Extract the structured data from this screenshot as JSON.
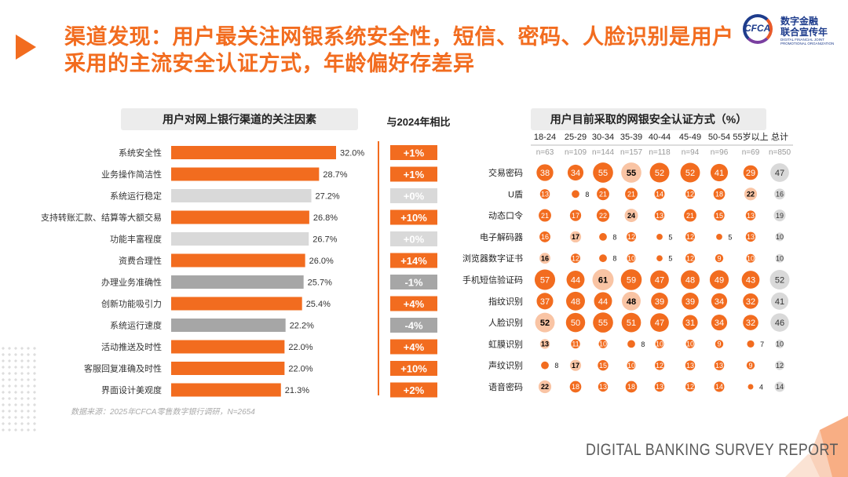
{
  "title": "渠道发现：用户最关注网银系统安全性，短信、密码、人脸识别是用户采用的主流安全认证方式，年龄偏好存差异",
  "logo": {
    "abbr": "CFCA",
    "line1": "数字金融",
    "line2": "联合宣传年",
    "line3": "DIGITAL FINANCIAL JOINT PROMOTIONAL ORGANIZATION"
  },
  "left_panel": {
    "title": "用户对网上银行渠道的关注因素",
    "compare_title": "与2024年相比"
  },
  "right_panel": {
    "title": "用户目前采取的网银安全认证方式（%）"
  },
  "source": "数据来源：2025年CFCA零售数字银行调研，N=2654",
  "footer": "DIGITAL BANKING SURVEY REPORT",
  "colors": {
    "accent": "#f26c1f",
    "light_gray": "#d9d9d9",
    "mid_gray": "#a6a6a6",
    "bubble_light": "#f9c4a4",
    "total_gray": "#d9d9d9"
  },
  "chart_data": [
    {
      "type": "bar",
      "title": "用户对网上银行渠道的关注因素",
      "orientation": "horizontal",
      "categories": [
        "系统安全性",
        "业务操作简洁性",
        "系统运行稳定",
        "支持转账汇款、结算等大额交易",
        "功能丰富程度",
        "资费合理性",
        "办理业务准确性",
        "创新功能吸引力",
        "系统运行速度",
        "活动推送及时性",
        "客服回复准确及时性",
        "界面设计美观度"
      ],
      "values": [
        32.0,
        28.7,
        27.2,
        26.8,
        26.7,
        26.0,
        25.7,
        25.4,
        22.2,
        22.0,
        22.0,
        21.3
      ],
      "labels": [
        "32.0%",
        "28.7%",
        "27.2%",
        "26.8%",
        "26.7%",
        "26.0%",
        "25.7%",
        "25.4%",
        "22.2%",
        "22.0%",
        "22.0%",
        "21.3%"
      ],
      "bar_color": [
        "orange",
        "orange",
        "lightgray",
        "orange",
        "lightgray",
        "orange",
        "gray",
        "orange",
        "gray",
        "orange",
        "orange",
        "orange"
      ],
      "change_vs_2024": [
        "+1%",
        "+1%",
        "+0%",
        "+10%",
        "+0%",
        "+14%",
        "-1%",
        "+4%",
        "-4%",
        "+4%",
        "+10%",
        "+2%"
      ],
      "change_color": [
        "orange",
        "orange",
        "lightgray",
        "orange",
        "lightgray",
        "orange",
        "gray",
        "orange",
        "gray",
        "orange",
        "orange",
        "orange"
      ],
      "xlim": [
        0,
        32
      ]
    },
    {
      "type": "table",
      "title": "用户目前采取的网银安全认证方式（%）",
      "columns": [
        "18-24",
        "25-29",
        "30-34",
        "35-39",
        "40-44",
        "45-49",
        "50-54",
        "55岁以上",
        "总计"
      ],
      "sample_sizes": [
        "n=63",
        "n=109",
        "n=144",
        "n=157",
        "n=118",
        "n=94",
        "n=96",
        "n=69",
        "n=850"
      ],
      "rows": [
        "交易密码",
        "U盾",
        "动态口令",
        "电子解码器",
        "浏览器数字证书",
        "手机短信验证码",
        "指纹识别",
        "人脸识别",
        "虹膜识别",
        "声纹识别",
        "语音密码"
      ],
      "values": [
        [
          38,
          34,
          55,
          55,
          52,
          52,
          41,
          29,
          47
        ],
        [
          13,
          8,
          21,
          21,
          14,
          12,
          18,
          22,
          16
        ],
        [
          21,
          17,
          22,
          24,
          13,
          21,
          15,
          13,
          19
        ],
        [
          16,
          17,
          8,
          12,
          5,
          12,
          5,
          13,
          10
        ],
        [
          16,
          12,
          8,
          10,
          5,
          12,
          9,
          10,
          10
        ],
        [
          57,
          44,
          61,
          59,
          47,
          48,
          49,
          43,
          52
        ],
        [
          37,
          48,
          44,
          48,
          39,
          39,
          34,
          32,
          41
        ],
        [
          52,
          50,
          55,
          51,
          47,
          31,
          34,
          32,
          46
        ],
        [
          13,
          11,
          10,
          8,
          10,
          10,
          9,
          7,
          10
        ],
        [
          8,
          17,
          15,
          10,
          12,
          13,
          13,
          9,
          12
        ],
        [
          22,
          18,
          13,
          18,
          13,
          12,
          14,
          4,
          14
        ]
      ],
      "highlight": [
        [
          0,
          0,
          0,
          1,
          0,
          0,
          0,
          0,
          0
        ],
        [
          0,
          0,
          0,
          0,
          0,
          0,
          0,
          1,
          0
        ],
        [
          0,
          0,
          0,
          1,
          0,
          0,
          0,
          0,
          0
        ],
        [
          0,
          1,
          0,
          0,
          0,
          0,
          0,
          0,
          0
        ],
        [
          1,
          0,
          0,
          0,
          0,
          0,
          0,
          0,
          0
        ],
        [
          0,
          0,
          1,
          0,
          0,
          0,
          0,
          0,
          0
        ],
        [
          0,
          0,
          0,
          1,
          0,
          0,
          0,
          0,
          0
        ],
        [
          1,
          0,
          0,
          0,
          0,
          0,
          0,
          0,
          0
        ],
        [
          1,
          0,
          0,
          0,
          0,
          0,
          0,
          0,
          0
        ],
        [
          0,
          1,
          0,
          0,
          0,
          0,
          0,
          0,
          0
        ],
        [
          1,
          0,
          0,
          0,
          0,
          0,
          0,
          0,
          0
        ]
      ],
      "label_outside": [
        [
          0,
          0,
          0,
          0,
          0,
          0,
          0,
          0,
          0
        ],
        [
          0,
          1,
          0,
          0,
          0,
          0,
          0,
          0,
          0
        ],
        [
          0,
          0,
          0,
          0,
          0,
          0,
          0,
          0,
          0
        ],
        [
          0,
          0,
          1,
          0,
          1,
          0,
          1,
          0,
          0
        ],
        [
          0,
          0,
          1,
          0,
          1,
          0,
          0,
          0,
          0
        ],
        [
          0,
          0,
          0,
          0,
          0,
          0,
          0,
          0,
          0
        ],
        [
          0,
          0,
          0,
          0,
          0,
          0,
          0,
          0,
          0
        ],
        [
          0,
          0,
          0,
          0,
          0,
          0,
          0,
          0,
          0
        ],
        [
          0,
          0,
          0,
          1,
          0,
          0,
          0,
          1,
          0
        ],
        [
          1,
          0,
          0,
          0,
          0,
          0,
          0,
          0,
          0
        ],
        [
          0,
          0,
          0,
          0,
          0,
          0,
          0,
          1,
          0
        ]
      ]
    }
  ]
}
